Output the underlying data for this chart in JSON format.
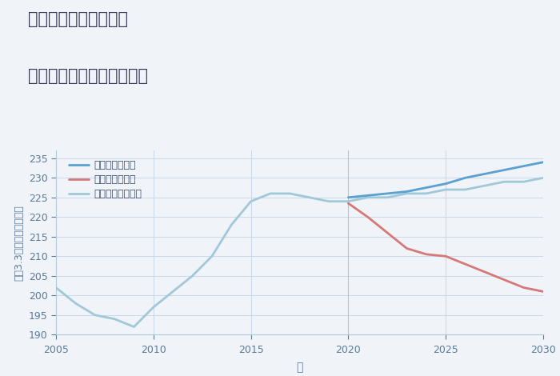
{
  "title_line1": "兵庫県西宮市大屋町の",
  "title_line2": "中古マンションの価格推移",
  "xlabel": "年",
  "ylabel": "坪（3.3㎡）単価（万円）",
  "ylim": [
    190,
    237
  ],
  "yticks": [
    190,
    195,
    200,
    205,
    210,
    215,
    220,
    225,
    230,
    235
  ],
  "xticks": [
    2005,
    2010,
    2015,
    2020,
    2025,
    2030
  ],
  "fig_bg_color": "#f0f4f8",
  "plot_bg_color": "#f0f4f8",
  "grid_color": "#c8d8ea",
  "normal_scenario": {
    "label": "ノーマルシナリオ",
    "color": "#a0c8d8",
    "years": [
      2005,
      2006,
      2007,
      2008,
      2009,
      2010,
      2011,
      2012,
      2013,
      2014,
      2015,
      2016,
      2017,
      2018,
      2019,
      2020,
      2021,
      2022,
      2023,
      2024,
      2025,
      2026,
      2027,
      2028,
      2029,
      2030
    ],
    "values": [
      202,
      198,
      195,
      194,
      192,
      197,
      201,
      205,
      210,
      218,
      224,
      226,
      226,
      225,
      224,
      224,
      225,
      225,
      226,
      226,
      227,
      227,
      228,
      229,
      229,
      230
    ]
  },
  "good_scenario": {
    "label": "グッドシナリオ",
    "color": "#5aa0d0",
    "years": [
      2020,
      2021,
      2022,
      2023,
      2024,
      2025,
      2026,
      2027,
      2028,
      2029,
      2030
    ],
    "values": [
      225,
      225.5,
      226,
      226.5,
      227.5,
      228.5,
      230,
      231,
      232,
      233,
      234
    ]
  },
  "bad_scenario": {
    "label": "バッドシナリオ",
    "color": "#d47878",
    "years": [
      2020,
      2021,
      2022,
      2023,
      2024,
      2025,
      2026,
      2027,
      2028,
      2029,
      2030
    ],
    "values": [
      223.5,
      220,
      216,
      212,
      210.5,
      210,
      208,
      206,
      204,
      202,
      201
    ]
  },
  "title_color": "#333355",
  "axis_color": "#5a7a9a",
  "tick_color": "#5a7a9a",
  "legend_text_color": "#3a4a6a",
  "spine_color": "#b0c8d8"
}
